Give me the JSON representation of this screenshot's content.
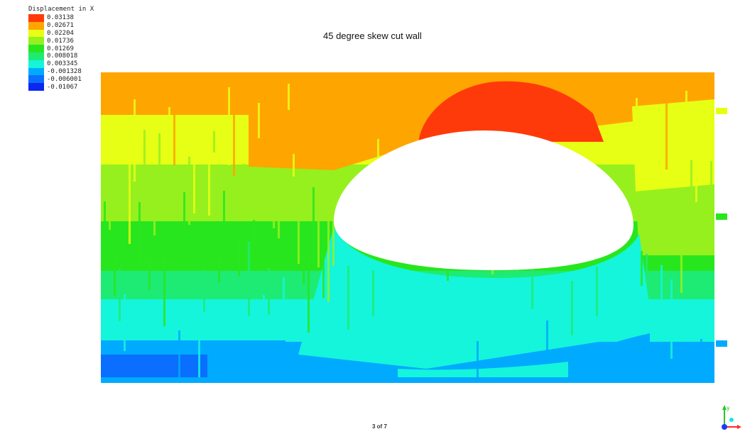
{
  "title": "45 degree skew cut wall",
  "legend": {
    "title": "Displacement in X",
    "items": [
      {
        "value": "0.03138",
        "color": "#ff3a0a"
      },
      {
        "value": "0.02671",
        "color": "#ffa500"
      },
      {
        "value": "0.02204",
        "color": "#e6ff14"
      },
      {
        "value": "0.01736",
        "color": "#96f01e"
      },
      {
        "value": "0.01269",
        "color": "#28e61e"
      },
      {
        "value": "0.008018",
        "color": "#1eeb73"
      },
      {
        "value": "0.003345",
        "color": "#14f5dc"
      },
      {
        "value": "-0.001328",
        "color": "#00aaff"
      },
      {
        "value": "-0.006001",
        "color": "#0a6eff"
      },
      {
        "value": "-0.01067",
        "color": "#0a28f0"
      }
    ]
  },
  "page_counter": "3 of 7",
  "triad": {
    "y_label": "y",
    "x_label": "x",
    "icon": "axis-triad-icon"
  }
}
